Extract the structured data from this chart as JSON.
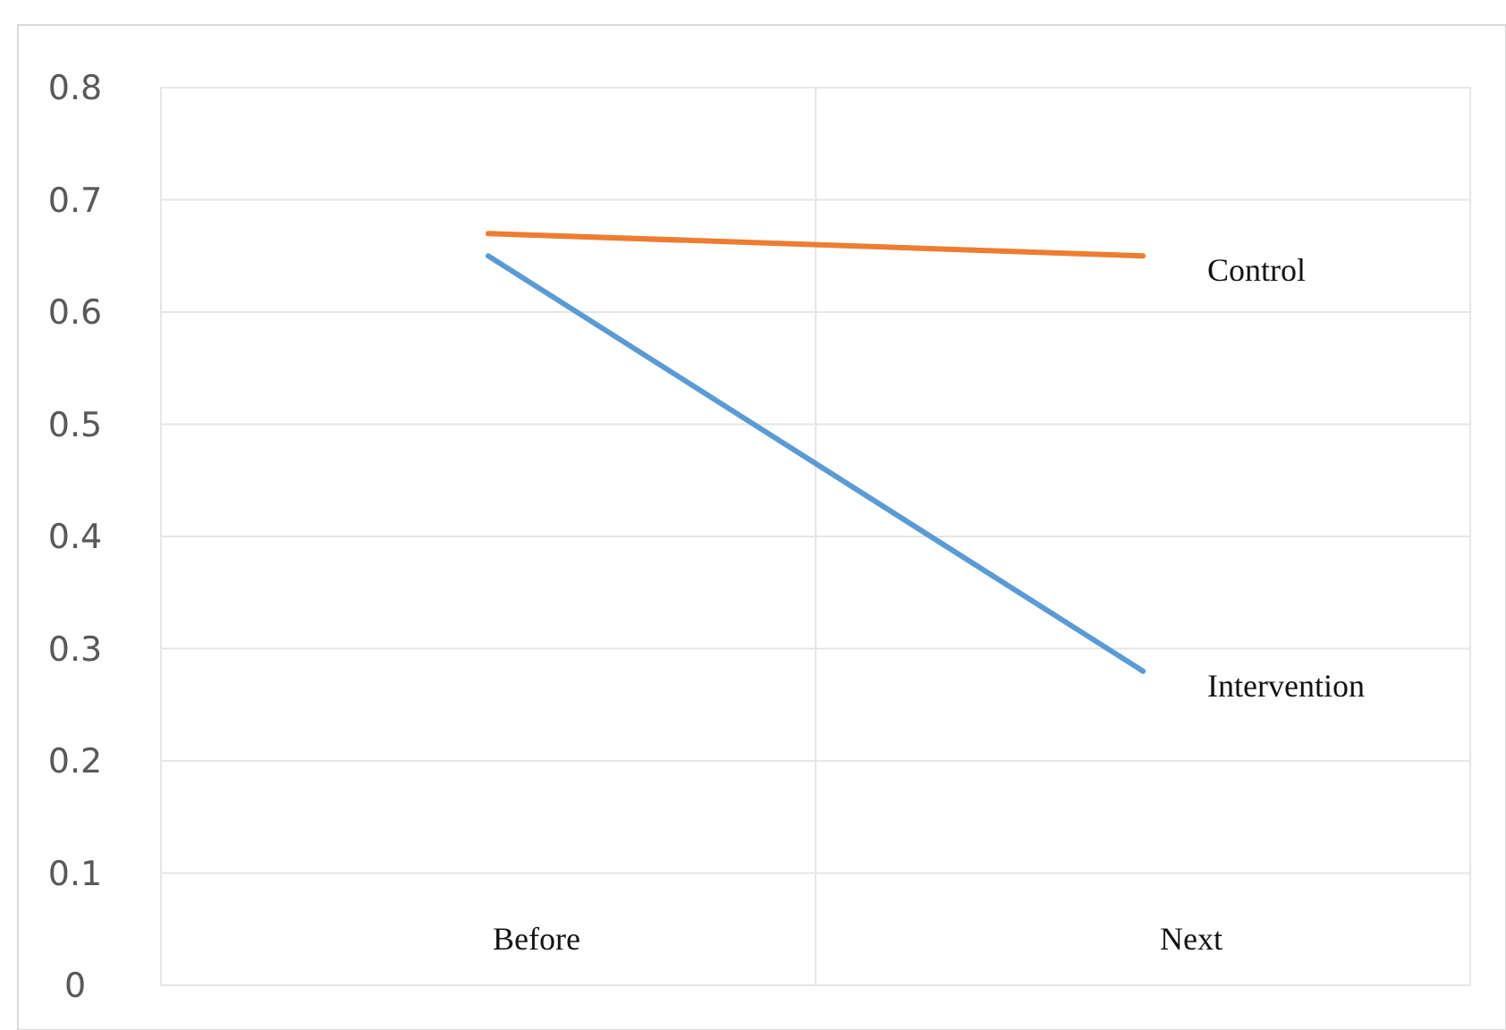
{
  "chart_data": {
    "type": "line",
    "categories": [
      "Before",
      "Next"
    ],
    "series": [
      {
        "name": "Control",
        "color": "#ed7d31",
        "values": [
          0.67,
          0.65
        ]
      },
      {
        "name": "Intervention",
        "color": "#5b9bd5",
        "values": [
          0.65,
          0.28
        ]
      }
    ],
    "ylim": [
      0,
      0.8
    ],
    "yticks": [
      {
        "value": 0,
        "label": "0"
      },
      0.1,
      0.2,
      0.3,
      0.4,
      0.5,
      0.6,
      0.7,
      0.8
    ],
    "grid": true,
    "marker": "none",
    "line_style": "solid"
  }
}
